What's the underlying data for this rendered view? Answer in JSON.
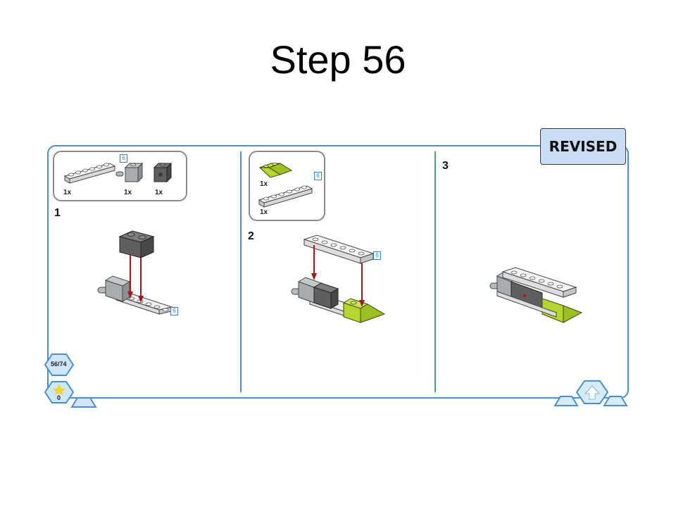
{
  "slide": {
    "title": "Step 56"
  },
  "badge": {
    "label": "REVISED"
  },
  "panels": [
    {
      "step": "1",
      "parts": [
        {
          "qty": "1x",
          "tag": "6"
        },
        {
          "qty": "1x"
        },
        {
          "qty": "1x"
        }
      ],
      "callout_tag": "6"
    },
    {
      "step": "2",
      "parts": [
        {
          "qty": "1x"
        },
        {
          "qty": "1x",
          "tag": "6"
        }
      ],
      "callout_tag": "6"
    },
    {
      "step": "3"
    }
  ],
  "nav": {
    "page_counter": "56/74",
    "score": "0"
  },
  "colors": {
    "frame": "#4a8fd0",
    "arrow": "#a11a1a",
    "lime": "#b5d531",
    "dark_brick": "#5e6060",
    "light_brick": "#a9acaf",
    "plate": "#f1f1f1"
  }
}
